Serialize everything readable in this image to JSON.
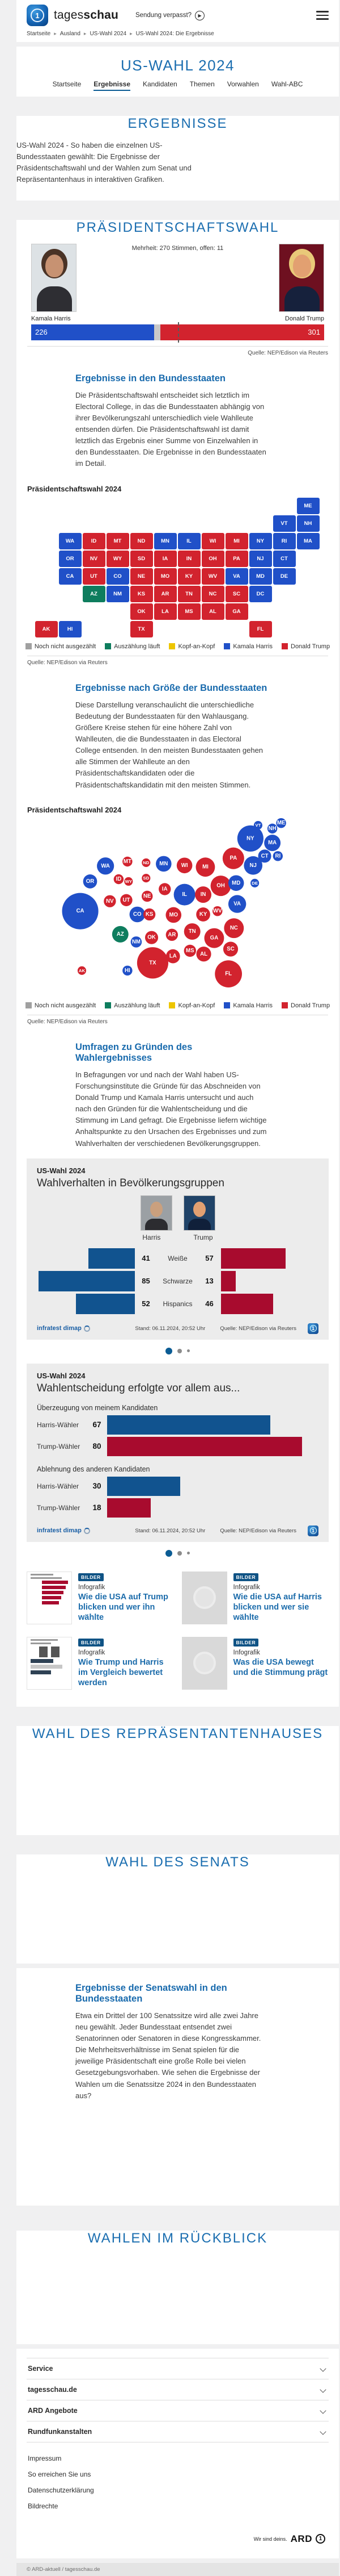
{
  "colors": {
    "accent": "#1b6eb0",
    "harris": "#2050c8",
    "trump": "#d2232e",
    "counting": "#0e7d5e",
    "tie": "#edc500",
    "pending": "#a0a0a0",
    "open_gray": "#c9c9c9",
    "chart_blue": "#11538f",
    "chart_red": "#a80b2e"
  },
  "header": {
    "logo_light": "tages",
    "logo_bold": "schau",
    "missed_show": "Sendung verpasst?",
    "breadcrumb": [
      "Startseite",
      "Ausland",
      "US-Wahl 2024",
      "US-Wahl 2024: Die Ergebnisse"
    ]
  },
  "title_section": {
    "title": "US-WAHL 2024",
    "tabs": [
      {
        "label": "Startseite",
        "active": false
      },
      {
        "label": "Ergebnisse",
        "active": true
      },
      {
        "label": "Kandidaten",
        "active": false
      },
      {
        "label": "Themen",
        "active": false
      },
      {
        "label": "Vorwahlen",
        "active": false
      },
      {
        "label": "Wahl-ABC",
        "active": false
      }
    ]
  },
  "ergebnisse_section": {
    "heading": "ERGEBNISSE",
    "text": "US-Wahl 2024 - So haben die einzelnen US-Bundesstaaten gewählt: Die Ergebnisse der Präsidentschaftswahl und der Wahlen zum Senat und Repräsentantenhaus in interaktiven Grafiken."
  },
  "praesidentschaftswahl": {
    "heading": "PRÄSIDENTSCHAFTSWAHL",
    "majority_note": "Mehrheit: 270 Stimmen, offen: 11",
    "source": "Quelle: NEP/Edison via Reuters"
  },
  "state_results_section": {
    "heading": "Ergebnisse in den Bundesstaaten",
    "text": "Die Präsidentschaftswahl entscheidet sich letztlich im Electoral College, in das die Bundesstaaten abhängig von ihrer Bevölkerungszahl unterschiedlich viele Wahlleute entsenden dürfen. Die Präsidentschaftswahl ist damit letztlich das Ergebnis einer Summe von Einzelwahlen in den Bundesstaaten. Die Ergebnisse in den Bundesstaaten im Detail.",
    "chart_label": "Präsidentschaftswahl 2024",
    "source": "Quelle: NEP/Edison via Reuters"
  },
  "size_section": {
    "heading": "Ergebnisse nach Größe der Bundesstaaten",
    "text": "Diese Darstellung veranschaulicht die unterschiedliche Bedeutung der Bundesstaaten für den Wahlausgang. Größere Kreise stehen für eine höhere Zahl von Wahlleuten, die die Bundesstaaten in das Electoral College entsenden. In den meisten Bundesstaaten gehen alle Stimmen der Wahlleute an den Präsidentschaftskandidaten oder die Präsidentschaftskandidatin mit den meisten Stimmen.",
    "chart_label": "Präsidentschaftswahl 2024",
    "source": "Quelle: NEP/Edison via Reuters"
  },
  "umfragen_section": {
    "heading": "Umfragen zu Gründen des Wahlergebnisses",
    "text": "In Befragungen vor und nach der Wahl haben US-Forschungsinstitute die Gründe für das Abschneiden von Donald Trump und Kamala Harris untersucht und auch nach den Gründen für die Wahlentscheidung und die Stimmung im Land gefragt. Die Ergebnisse liefern wichtige Anhaltspunkte zu den Ursachen des Ergebnisses und zum Wahlverhalten der verschiedenen Bevölkerungsgruppen."
  },
  "map_legend": [
    {
      "label": "Noch nicht ausgezählt",
      "color": "#a0a0a0"
    },
    {
      "label": "Auszählung läuft",
      "color": "#0e7d5e"
    },
    {
      "label": "Kopf-an-Kopf",
      "color": "#edc500"
    },
    {
      "label": "Kamala Harris",
      "color": "#2050c8"
    },
    {
      "label": "Donald Trump",
      "color": "#d2232e"
    }
  ],
  "chart_data": [
    {
      "id": "electoral_bar",
      "type": "bar",
      "title": "Präsidentschaftswahl Electoral College",
      "candidates": [
        {
          "name": "Kamala Harris",
          "votes": 226,
          "color": "#2050c8"
        },
        {
          "name": "Donald Trump",
          "votes": 301,
          "color": "#d2232e"
        }
      ],
      "open_votes": 11,
      "majority": 270,
      "total": 538
    },
    {
      "id": "state_results_maps",
      "type": "heatmap",
      "title": "Präsidentschaftswahl 2024 – Ergebnisse und Wahlleute je Bundesstaat",
      "legend": [
        "Noch nicht ausgezählt",
        "Auszählung läuft",
        "Kopf-an-Kopf",
        "Kamala Harris",
        "Donald Trump"
      ],
      "states": [
        {
          "abbr": "WA",
          "ev": 12,
          "result": "harris"
        },
        {
          "abbr": "OR",
          "ev": 8,
          "result": "harris"
        },
        {
          "abbr": "CA",
          "ev": 54,
          "result": "harris"
        },
        {
          "abbr": "NV",
          "ev": 6,
          "result": "trump"
        },
        {
          "abbr": "ID",
          "ev": 4,
          "result": "trump"
        },
        {
          "abbr": "MT",
          "ev": 4,
          "result": "trump"
        },
        {
          "abbr": "WY",
          "ev": 3,
          "result": "trump"
        },
        {
          "abbr": "UT",
          "ev": 6,
          "result": "trump"
        },
        {
          "abbr": "AZ",
          "ev": 11,
          "result": "counting"
        },
        {
          "abbr": "CO",
          "ev": 10,
          "result": "harris"
        },
        {
          "abbr": "NM",
          "ev": 5,
          "result": "harris"
        },
        {
          "abbr": "ND",
          "ev": 3,
          "result": "trump"
        },
        {
          "abbr": "SD",
          "ev": 3,
          "result": "trump"
        },
        {
          "abbr": "NE",
          "ev": 5,
          "result": "trump"
        },
        {
          "abbr": "KS",
          "ev": 6,
          "result": "trump"
        },
        {
          "abbr": "OK",
          "ev": 7,
          "result": "trump"
        },
        {
          "abbr": "TX",
          "ev": 40,
          "result": "trump"
        },
        {
          "abbr": "MN",
          "ev": 10,
          "result": "harris"
        },
        {
          "abbr": "IA",
          "ev": 6,
          "result": "trump"
        },
        {
          "abbr": "MO",
          "ev": 10,
          "result": "trump"
        },
        {
          "abbr": "AR",
          "ev": 6,
          "result": "trump"
        },
        {
          "abbr": "LA",
          "ev": 8,
          "result": "trump"
        },
        {
          "abbr": "WI",
          "ev": 10,
          "result": "trump"
        },
        {
          "abbr": "IL",
          "ev": 19,
          "result": "harris"
        },
        {
          "abbr": "MS",
          "ev": 6,
          "result": "trump"
        },
        {
          "abbr": "MI",
          "ev": 15,
          "result": "trump"
        },
        {
          "abbr": "IN",
          "ev": 11,
          "result": "trump"
        },
        {
          "abbr": "OH",
          "ev": 17,
          "result": "trump"
        },
        {
          "abbr": "KY",
          "ev": 8,
          "result": "trump"
        },
        {
          "abbr": "TN",
          "ev": 11,
          "result": "trump"
        },
        {
          "abbr": "AL",
          "ev": 9,
          "result": "trump"
        },
        {
          "abbr": "GA",
          "ev": 16,
          "result": "trump"
        },
        {
          "abbr": "FL",
          "ev": 30,
          "result": "trump"
        },
        {
          "abbr": "SC",
          "ev": 9,
          "result": "trump"
        },
        {
          "abbr": "NC",
          "ev": 16,
          "result": "trump"
        },
        {
          "abbr": "WV",
          "ev": 4,
          "result": "trump"
        },
        {
          "abbr": "VA",
          "ev": 13,
          "result": "harris"
        },
        {
          "abbr": "PA",
          "ev": 19,
          "result": "trump"
        },
        {
          "abbr": "MD",
          "ev": 10,
          "result": "harris"
        },
        {
          "abbr": "DE",
          "ev": 3,
          "result": "harris"
        },
        {
          "abbr": "NJ",
          "ev": 14,
          "result": "harris"
        },
        {
          "abbr": "NY",
          "ev": 28,
          "result": "harris"
        },
        {
          "abbr": "CT",
          "ev": 7,
          "result": "harris"
        },
        {
          "abbr": "RI",
          "ev": 4,
          "result": "harris"
        },
        {
          "abbr": "MA",
          "ev": 11,
          "result": "harris"
        },
        {
          "abbr": "VT",
          "ev": 3,
          "result": "harris"
        },
        {
          "abbr": "NH",
          "ev": 4,
          "result": "harris"
        },
        {
          "abbr": "ME",
          "ev": 4,
          "result": "harris"
        },
        {
          "abbr": "AK",
          "ev": 3,
          "result": "trump"
        },
        {
          "abbr": "HI",
          "ev": 4,
          "result": "harris"
        },
        {
          "abbr": "DC",
          "ev": 3,
          "result": "harris"
        }
      ]
    },
    {
      "id": "demographics",
      "type": "bar",
      "title": "Wahlverhalten in Bevölkerungsgruppen",
      "categories": [
        "Weiße",
        "Schwarze",
        "Hispanics"
      ],
      "series": [
        {
          "name": "Harris",
          "values": [
            41,
            85,
            52
          ],
          "color": "#11538f"
        },
        {
          "name": "Trump",
          "values": [
            57,
            13,
            46
          ],
          "color": "#a80b2e"
        }
      ]
    },
    {
      "id": "decision",
      "type": "bar",
      "title": "Wahlentscheidung erfolgte vor allem aus...",
      "groups": [
        {
          "label": "Überzeugung von meinem Kandidaten",
          "rows": [
            {
              "label": "Harris-Wähler",
              "value": 67,
              "color": "#11538f"
            },
            {
              "label": "Trump-Wähler",
              "value": 80,
              "color": "#a80b2e"
            }
          ]
        },
        {
          "label": "Ablehnung des anderen Kandidaten",
          "rows": [
            {
              "label": "Harris-Wähler",
              "value": 30,
              "color": "#11538f"
            },
            {
              "label": "Trump-Wähler",
              "value": 18,
              "color": "#a80b2e"
            }
          ]
        }
      ]
    }
  ],
  "card1": {
    "kicker": "US-Wahl 2024",
    "title": "Wahlverhalten in Bevölkerungsgruppen",
    "col_left": "Harris",
    "col_right": "Trump",
    "footer": {
      "brand": "infratest dimap",
      "stand": "Stand:  06.11.2024, 20:52 Uhr",
      "source": "Quelle: NEP/Edison via Reuters"
    }
  },
  "card2": {
    "kicker": "US-Wahl 2024",
    "title": "Wahlentscheidung erfolgte vor allem aus...",
    "footer": {
      "brand": "infratest dimap",
      "stand": "Stand:  06.11.2024, 20:52 Uhr",
      "source": "Quelle: NEP/Edison via Reuters"
    }
  },
  "teasers": [
    {
      "badge": "BILDER",
      "kicker": "Infografik",
      "title": "Wie die USA auf Trump blicken und wer ihn wählte",
      "thumb": "bars"
    },
    {
      "badge": "BILDER",
      "kicker": "Infografik",
      "title": "Wie die USA auf Harris blicken und wer sie wählte",
      "thumb": "placeholder"
    },
    {
      "badge": "BILDER",
      "kicker": "Infografik",
      "title": "Wie Trump und Harris im Vergleich bewertet werden",
      "thumb": "compare"
    },
    {
      "badge": "BILDER",
      "kicker": "Infografik",
      "title": "Was die USA bewegt und die Stimmung prägt",
      "thumb": "placeholder"
    }
  ],
  "repr_section": {
    "heading": "WAHL DES REPRÄSENTANTENHAUSES"
  },
  "senat_section": {
    "heading": "WAHL DES SENATS"
  },
  "senate_results_section": {
    "heading": "Ergebnisse der Senatswahl in den Bundesstaaten",
    "text": "Etwa ein Drittel der 100 Senatssitze wird alle zwei Jahre neu gewählt. Jeder Bundesstaat entsendet zwei Senatorinnen oder Senatoren in diese Kongresskammer. Die Mehrheitsverhältnisse im Senat spielen für die jeweilige Präsidentschaft eine große Rolle bei vielen Gesetzgebungsvorhaben. Wie sehen die Ergebnisse der Wahlen um die Senatssitze 2024 in den Bundesstaaten aus?"
  },
  "rueckblick_section": {
    "heading": "WAHLEN IM RÜCKBLICK"
  },
  "footer": {
    "accordion": [
      "Service",
      "tagesschau.de",
      "ARD Angebote",
      "Rundfunkanstalten"
    ],
    "links": [
      "Impressum",
      "So erreichen Sie uns",
      "Datenschutzerklärung",
      "Bildrechte"
    ],
    "ard_claim": "Wir sind deins.",
    "ard_word": "ARD",
    "copyright": "© ARD-aktuell / tagesschau.de"
  }
}
